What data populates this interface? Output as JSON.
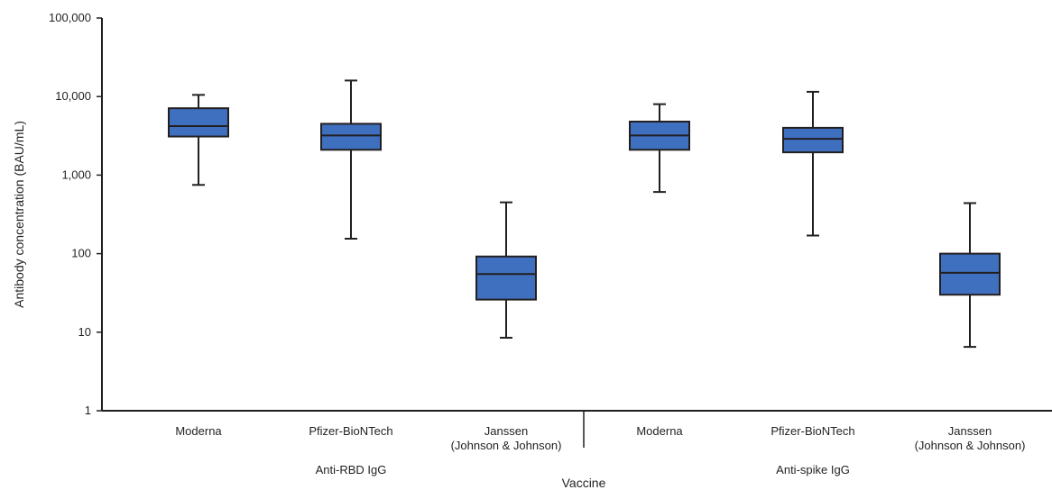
{
  "chart_data": {
    "type": "box",
    "title": "",
    "xlabel": "Vaccine",
    "ylabel": "Antibody concentration (BAU/mL)",
    "y_scale": "log",
    "ylim": [
      1,
      100000
    ],
    "y_ticks": [
      1,
      10,
      100,
      1000,
      10000,
      100000
    ],
    "y_tick_labels": [
      "1",
      "10",
      "100",
      "1,000",
      "10,000",
      "100,000"
    ],
    "groups": [
      {
        "label": "Anti-RBD IgG",
        "categories": [
          {
            "label": [
              "Moderna"
            ],
            "whisker_low": 750,
            "q1": 3100,
            "median": 4200,
            "q3": 7100,
            "whisker_high": 10500
          },
          {
            "label": [
              "Pfizer-BioNTech"
            ],
            "whisker_low": 155,
            "q1": 2100,
            "median": 3200,
            "q3": 4500,
            "whisker_high": 16000
          },
          {
            "label": [
              "Janssen",
              "(Johnson & Johnson)"
            ],
            "whisker_low": 8.5,
            "q1": 26,
            "median": 55,
            "q3": 92,
            "whisker_high": 450
          }
        ]
      },
      {
        "label": "Anti-spike IgG",
        "categories": [
          {
            "label": [
              "Moderna"
            ],
            "whisker_low": 610,
            "q1": 2100,
            "median": 3200,
            "q3": 4800,
            "whisker_high": 8000
          },
          {
            "label": [
              "Pfizer-BioNTech"
            ],
            "whisker_low": 170,
            "q1": 1950,
            "median": 2900,
            "q3": 4000,
            "whisker_high": 11500
          },
          {
            "label": [
              "Janssen",
              "(Johnson & Johnson)"
            ],
            "whisker_low": 6.5,
            "q1": 30,
            "median": 57,
            "q3": 100,
            "whisker_high": 440
          }
        ]
      }
    ],
    "box_color": "#3f6fbf",
    "grid": false,
    "legend": "none"
  }
}
